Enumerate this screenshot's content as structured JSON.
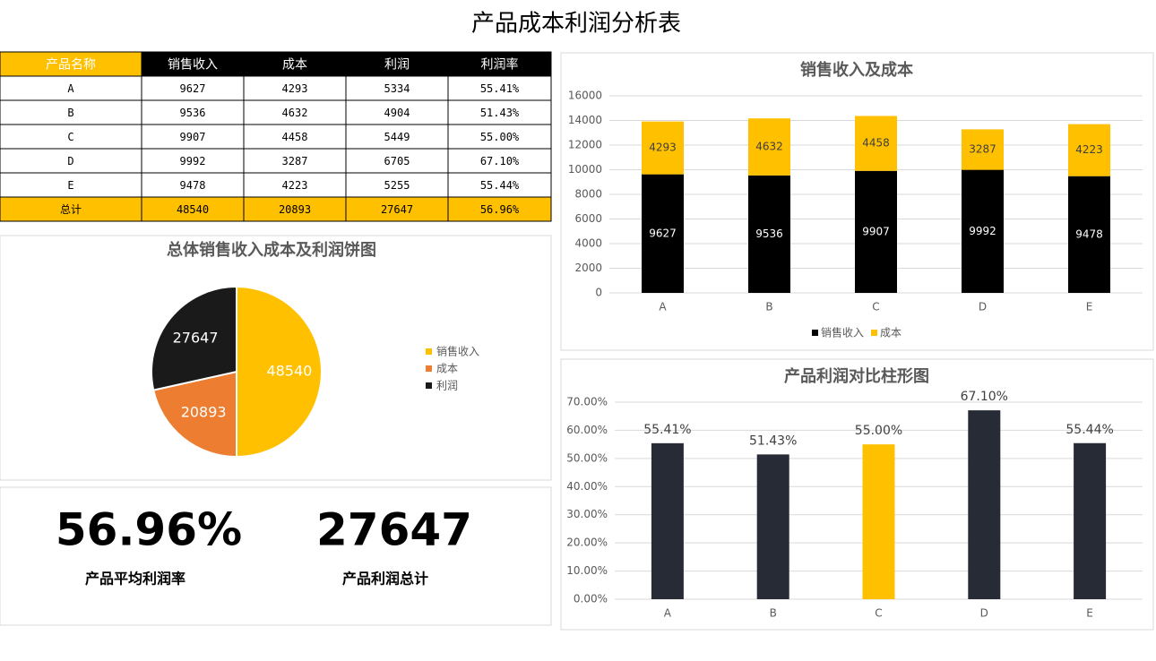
{
  "title": "产品成本利润分析表",
  "table": {
    "header": [
      "产品名称",
      "销售收入",
      "成本",
      "利润",
      "利润率"
    ],
    "rows": [
      [
        "A",
        "9627",
        "4293",
        "5334",
        "55.41%"
      ],
      [
        "B",
        "9536",
        "4632",
        "4904",
        "51.43%"
      ],
      [
        "C",
        "9907",
        "4458",
        "5449",
        "55.00%"
      ],
      [
        "D",
        "9992",
        "3287",
        "6705",
        "67.10%"
      ],
      [
        "E",
        "9478",
        "4223",
        "5255",
        "55.44%"
      ],
      [
        "总计",
        "48540",
        "20893",
        "27647",
        "56.96%"
      ]
    ]
  },
  "kpis": [
    {
      "value": "56.96%",
      "label": "产品平均利润率"
    },
    {
      "value": "27647",
      "label": "产品利润总计"
    }
  ],
  "chart_data": [
    {
      "type": "pie",
      "title": "总体销售收入成本及利润饼图",
      "categories": [
        "销售收入",
        "成本",
        "利润"
      ],
      "values": [
        48540,
        20893,
        27647
      ],
      "colors": [
        "#ffc000",
        "#ed7d31",
        "#1a1a1a"
      ],
      "legend": "right"
    },
    {
      "type": "stacked-bar",
      "title": "销售收入及成本",
      "categories": [
        "A",
        "B",
        "C",
        "D",
        "E"
      ],
      "series": [
        {
          "name": "销售收入",
          "color": "#000000",
          "values": [
            9627,
            9536,
            9907,
            9992,
            9478
          ]
        },
        {
          "name": "成本",
          "color": "#ffc000",
          "values": [
            4293,
            4632,
            4458,
            3287,
            4223
          ]
        }
      ],
      "ylim": [
        0,
        16000
      ],
      "yticks": [
        0,
        2000,
        4000,
        6000,
        8000,
        10000,
        12000,
        14000,
        16000
      ],
      "grid": true,
      "legend": "bottom"
    },
    {
      "type": "bar",
      "title": "产品利润对比柱形图",
      "categories": [
        "A",
        "B",
        "C",
        "D",
        "E"
      ],
      "values": [
        55.41,
        51.43,
        55.0,
        67.1,
        55.44
      ],
      "value_labels": [
        "55.41%",
        "51.43%",
        "55.00%",
        "67.10%",
        "55.44%"
      ],
      "colors": [
        "#262b36",
        "#262b36",
        "#ffc000",
        "#262b36",
        "#262b36"
      ],
      "ylim": [
        0,
        70
      ],
      "yticks": [
        {
          "value": 0,
          "label": "0.00%"
        },
        {
          "value": 10,
          "label": "10.00%"
        },
        {
          "value": 20,
          "label": "20.00%"
        },
        {
          "value": 30,
          "label": "30.00%"
        },
        {
          "value": 40,
          "label": "40.00%"
        },
        {
          "value": 50,
          "label": "50.00%"
        },
        {
          "value": 60,
          "label": "60.00%"
        },
        {
          "value": 70,
          "label": "70.00%"
        }
      ],
      "grid": true
    }
  ]
}
